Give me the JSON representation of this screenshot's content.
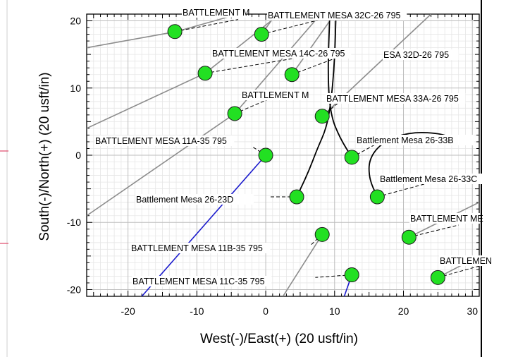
{
  "chart_data": {
    "type": "scatter",
    "title": "",
    "xlabel": "West(-)/East(+) (20 usft/in)",
    "ylabel": "South(-)/North(+) (20 usft/in)",
    "xlim": [
      -26,
      31
    ],
    "ylim": [
      -21,
      21
    ],
    "grid": true,
    "x_ticks": [
      {
        "v": -20,
        "label": "-20"
      },
      {
        "v": -10,
        "label": "-10"
      },
      {
        "v": 0,
        "label": "0"
      },
      {
        "v": 10,
        "label": "10"
      },
      {
        "v": 20,
        "label": "20"
      },
      {
        "v": 30,
        "label": "30"
      }
    ],
    "y_ticks": [
      {
        "v": 20,
        "label": "20"
      },
      {
        "v": 10,
        "label": "10"
      },
      {
        "v": 0,
        "label": "0"
      },
      {
        "v": -10,
        "label": "-10"
      },
      {
        "v": -20,
        "label": "-20"
      }
    ],
    "wells": [
      {
        "name": "BATTLEMENT MESA 11A-35 795",
        "x": 0,
        "y": 0
      },
      {
        "name": "Battlement Mesa 26-23D",
        "x": 4.5,
        "y": -6.2
      },
      {
        "name": "Battlement Mesa 26-33B",
        "x": 12.5,
        "y": -0.3
      },
      {
        "name": "Battlement Mesa 26-33C",
        "x": 16.2,
        "y": -6.2
      },
      {
        "name": "BATTLEMENT MESA 11B-35 795",
        "x": 8.2,
        "y": -11.8
      },
      {
        "name": "BATTLEMENT MESA 11C-35 795",
        "x": 12.5,
        "y": -17.8
      },
      {
        "name": "BATTLEMENT ME",
        "x": 20.8,
        "y": -12.2
      },
      {
        "name": "BATTLEMEN",
        "x": 25,
        "y": -18.2
      },
      {
        "name": "BATTLEMENT MESA 32C-26 795",
        "x": -0.6,
        "y": 18
      },
      {
        "name": "BATTLEMENT MESA 14C-26 795",
        "x": 3.8,
        "y": 12
      },
      {
        "name": "BATTLEMENT MESA 33A-26 795",
        "x": 8.2,
        "y": 5.8
      },
      {
        "name": "BATTLEMENT MESA 11A-35 795",
        "x": -4.5,
        "y": 6.2
      },
      {
        "name": "BATTLEMENT M",
        "x": -8.8,
        "y": 12.2
      },
      {
        "name": "BATTLEMENT M",
        "x": -13.2,
        "y": 18.4
      }
    ],
    "extra_labels": [
      {
        "text": "BATTLEMENT M",
        "x": -11,
        "y": 21
      },
      {
        "text": "ESA 32D-26 795",
        "x": 11,
        "y": 14.5
      },
      {
        "text": "BATTLEMENT M",
        "x": -2.5,
        "y": 8.8
      }
    ],
    "gray_lines": [
      [
        [
          -26,
          16
        ],
        [
          -13,
          18.4
        ],
        [
          -4,
          21
        ]
      ],
      [
        [
          -26,
          4
        ],
        [
          -8.8,
          12.2
        ],
        [
          2,
          21
        ]
      ],
      [
        [
          -26,
          -9
        ],
        [
          -4.5,
          6.2
        ],
        [
          8,
          21
        ]
      ],
      [
        [
          -0.6,
          18
        ],
        [
          1.5,
          21
        ]
      ],
      [
        [
          3.8,
          12
        ],
        [
          10,
          21
        ]
      ],
      [
        [
          8.2,
          5.8
        ],
        [
          24,
          21
        ]
      ],
      [
        [
          8.2,
          -11.8
        ],
        [
          2.5,
          -21
        ]
      ],
      [
        [
          20.8,
          -12.2
        ],
        [
          31,
          -7
        ]
      ],
      [
        [
          25,
          -18.2
        ],
        [
          31,
          -15
        ]
      ]
    ],
    "blue_lines": [
      [
        [
          0,
          0
        ],
        [
          -18,
          -21
        ]
      ],
      [
        [
          12.5,
          -17.8
        ],
        [
          11.4,
          -21
        ]
      ]
    ],
    "black_curves": [
      [
        [
          4.5,
          -6.2
        ],
        [
          6.2,
          -2.5
        ],
        [
          7.5,
          1
        ],
        [
          8.8,
          4
        ],
        [
          9.5,
          8
        ],
        [
          10,
          14
        ],
        [
          10.2,
          21
        ]
      ],
      [
        [
          12.5,
          -0.3
        ],
        [
          10.8,
          2.5
        ],
        [
          9.4,
          6
        ],
        [
          9,
          12
        ],
        [
          9.3,
          21
        ]
      ],
      [
        [
          16.2,
          -6.2
        ],
        [
          15,
          -3.5
        ],
        [
          15,
          -0.5
        ],
        [
          17,
          2
        ],
        [
          21,
          3.5
        ],
        [
          26,
          3.2
        ],
        [
          27.5,
          2
        ]
      ]
    ],
    "leader_lines": [
      [
        [
          -13.2,
          18.4
        ],
        [
          -4,
          20.2
        ]
      ],
      [
        [
          -0.6,
          18
        ],
        [
          8,
          20.2
        ]
      ],
      [
        [
          -8.8,
          12.2
        ],
        [
          4,
          14.4
        ]
      ],
      [
        [
          3.8,
          12
        ],
        [
          10,
          14.4
        ]
      ],
      [
        [
          -4.5,
          6.2
        ],
        [
          1,
          8.6
        ]
      ],
      [
        [
          8.2,
          5.8
        ],
        [
          11.5,
          8.6
        ]
      ],
      [
        [
          0,
          0
        ],
        [
          -2,
          1.3
        ]
      ],
      [
        [
          12.5,
          -0.3
        ],
        [
          17,
          2.2
        ]
      ],
      [
        [
          4.5,
          -6.2
        ],
        [
          0.5,
          -6.2
        ]
      ],
      [
        [
          16.2,
          -6.2
        ],
        [
          23,
          -4.3
        ]
      ],
      [
        [
          8.2,
          -11.8
        ],
        [
          6.5,
          -13.4
        ]
      ],
      [
        [
          20.8,
          -12.2
        ],
        [
          28,
          -10.4
        ]
      ],
      [
        [
          12.5,
          -17.8
        ],
        [
          7.2,
          -18.2
        ]
      ],
      [
        [
          25,
          -18.2
        ],
        [
          31,
          -16.5
        ]
      ]
    ]
  }
}
